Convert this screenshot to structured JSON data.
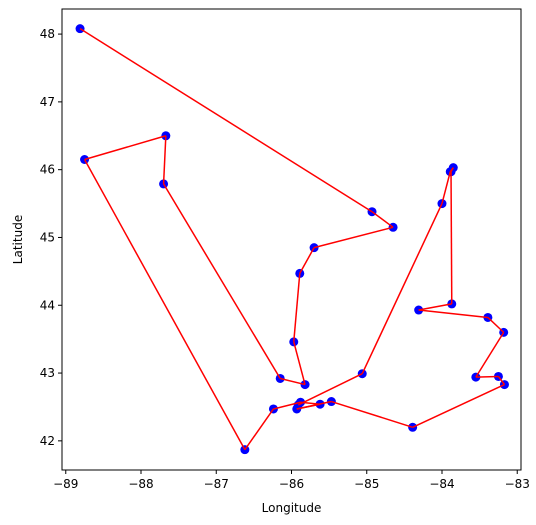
{
  "chart_data": {
    "type": "scatter",
    "title": "",
    "xlabel": "Longitude",
    "ylabel": "Latitude",
    "xlim": [
      -89.05,
      -82.95
    ],
    "ylim": [
      41.57,
      48.37
    ],
    "xticks": [
      -89,
      -88,
      -87,
      -86,
      -85,
      -84,
      -83
    ],
    "yticks": [
      42,
      43,
      44,
      45,
      46,
      47,
      48
    ],
    "grid": false,
    "legend": "none",
    "point_color": "#0000ff",
    "line_color": "#ff0000",
    "route": [
      [
        -88.81,
        48.08
      ],
      [
        -84.93,
        45.38
      ],
      [
        -84.65,
        45.15
      ],
      [
        -85.7,
        44.85
      ],
      [
        -85.89,
        44.47
      ],
      [
        -85.97,
        43.46
      ],
      [
        -85.82,
        42.83
      ],
      [
        -86.15,
        42.92
      ],
      [
        -87.7,
        45.79
      ],
      [
        -87.67,
        46.5
      ],
      [
        -88.75,
        46.15
      ],
      [
        -86.62,
        41.87
      ],
      [
        -86.24,
        42.47
      ],
      [
        -85.88,
        42.57
      ],
      [
        -85.62,
        42.54
      ],
      [
        -85.93,
        42.47
      ],
      [
        -85.47,
        42.58
      ],
      [
        -84.39,
        42.2
      ],
      [
        -83.17,
        42.83
      ],
      [
        -83.25,
        42.95
      ],
      [
        -83.55,
        42.94
      ],
      [
        -83.18,
        43.6
      ],
      [
        -83.39,
        43.82
      ],
      [
        -84.31,
        43.93
      ],
      [
        -83.87,
        44.02
      ],
      [
        -83.88,
        45.97
      ],
      [
        -83.85,
        46.03
      ],
      [
        -83.89,
        45.97
      ],
      [
        -84.0,
        45.5
      ],
      [
        -85.06,
        42.99
      ],
      [
        -85.91,
        42.53
      ]
    ]
  }
}
